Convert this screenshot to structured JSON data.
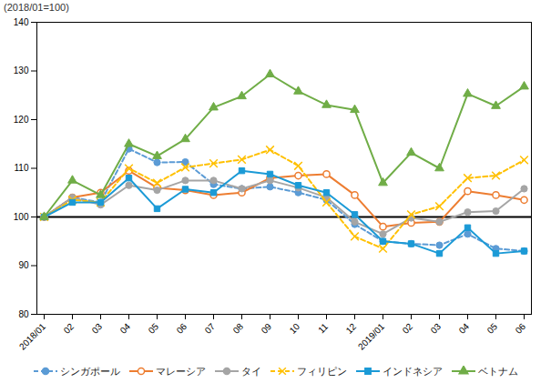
{
  "chart_data": {
    "type": "line",
    "title": "(2018/01=100)",
    "categories": [
      "2018/01",
      "02",
      "03",
      "04",
      "05",
      "06",
      "07",
      "08",
      "09",
      "10",
      "11",
      "12",
      "2019/01",
      "02",
      "03",
      "04",
      "05",
      "06"
    ],
    "ylim": [
      80,
      140
    ],
    "yticks": [
      80,
      90,
      100,
      110,
      120,
      130,
      140
    ],
    "grid": false,
    "baseline": 100,
    "legend": "bottom",
    "series": [
      {
        "name": "シンガポール",
        "color": "#5B9BD5",
        "marker": "circle",
        "line_style": "dashed",
        "values": [
          100,
          104,
          103,
          114,
          111.2,
          111.3,
          106.7,
          105.8,
          106.2,
          105,
          103.5,
          98.5,
          95,
          94.5,
          94.2,
          96.5,
          93.5,
          93
        ]
      },
      {
        "name": "マレーシア",
        "color": "#ED7D31",
        "marker": "circle-open",
        "line_style": "solid",
        "values": [
          100,
          104,
          105,
          109.5,
          106,
          105.5,
          104.5,
          105,
          108,
          108.5,
          108.8,
          104.5,
          98,
          98.8,
          99,
          105.3,
          104.5,
          103.5
        ]
      },
      {
        "name": "タイ",
        "color": "#A5A5A5",
        "marker": "circle",
        "line_style": "solid",
        "values": [
          100,
          104,
          102.5,
          106.5,
          105.5,
          107.5,
          107.5,
          105.8,
          107.5,
          106,
          104,
          99,
          96.5,
          99.8,
          99,
          101,
          101.2,
          105.8
        ]
      },
      {
        "name": "フィリピン",
        "color": "#FFC000",
        "marker": "x",
        "line_style": "dashed",
        "values": [
          100,
          103.5,
          103,
          110,
          107,
          110.2,
          111,
          111.8,
          113.8,
          110.5,
          103,
          96,
          93.5,
          100.5,
          102.2,
          108,
          108.5,
          111.7
        ]
      },
      {
        "name": "インドネシア",
        "color": "#1B9AD6",
        "marker": "square",
        "line_style": "solid",
        "values": [
          100,
          103,
          103,
          108,
          101.7,
          105.7,
          105,
          109.5,
          108.8,
          106.5,
          105,
          100.5,
          95,
          94.5,
          92.5,
          97.8,
          92.5,
          93
        ]
      },
      {
        "name": "ベトナム",
        "color": "#70AD47",
        "marker": "triangle",
        "line_style": "solid",
        "values": [
          100,
          107.5,
          104.5,
          115,
          112.5,
          116,
          122.5,
          124.8,
          129.3,
          125.8,
          123,
          122,
          107,
          113.2,
          110,
          125.3,
          122.8,
          126.8
        ]
      }
    ]
  }
}
